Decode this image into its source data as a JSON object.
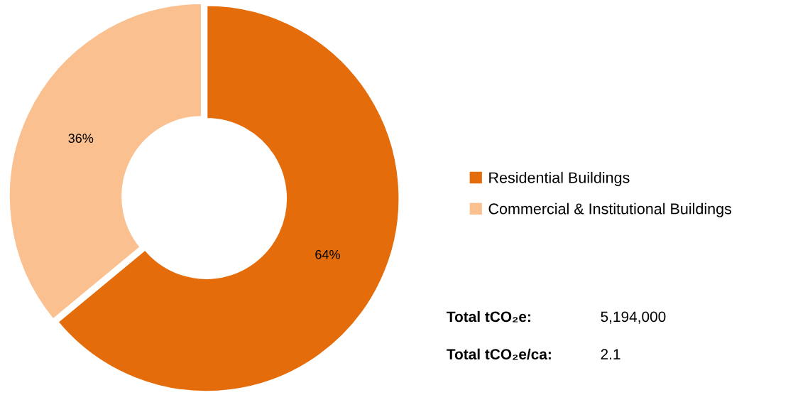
{
  "chart_data": {
    "type": "donut",
    "categories": [
      "Residential Buildings",
      "Commercial & Institutional Buildings"
    ],
    "values": [
      64,
      36
    ],
    "colors": [
      "#e46c0a",
      "#fac090"
    ],
    "value_labels": [
      "64%",
      "36%"
    ],
    "legend": "right",
    "annotations": [
      "Total tCO₂e:",
      "5,194,000",
      "Total tCO₂e/ca:",
      "2.1"
    ]
  }
}
